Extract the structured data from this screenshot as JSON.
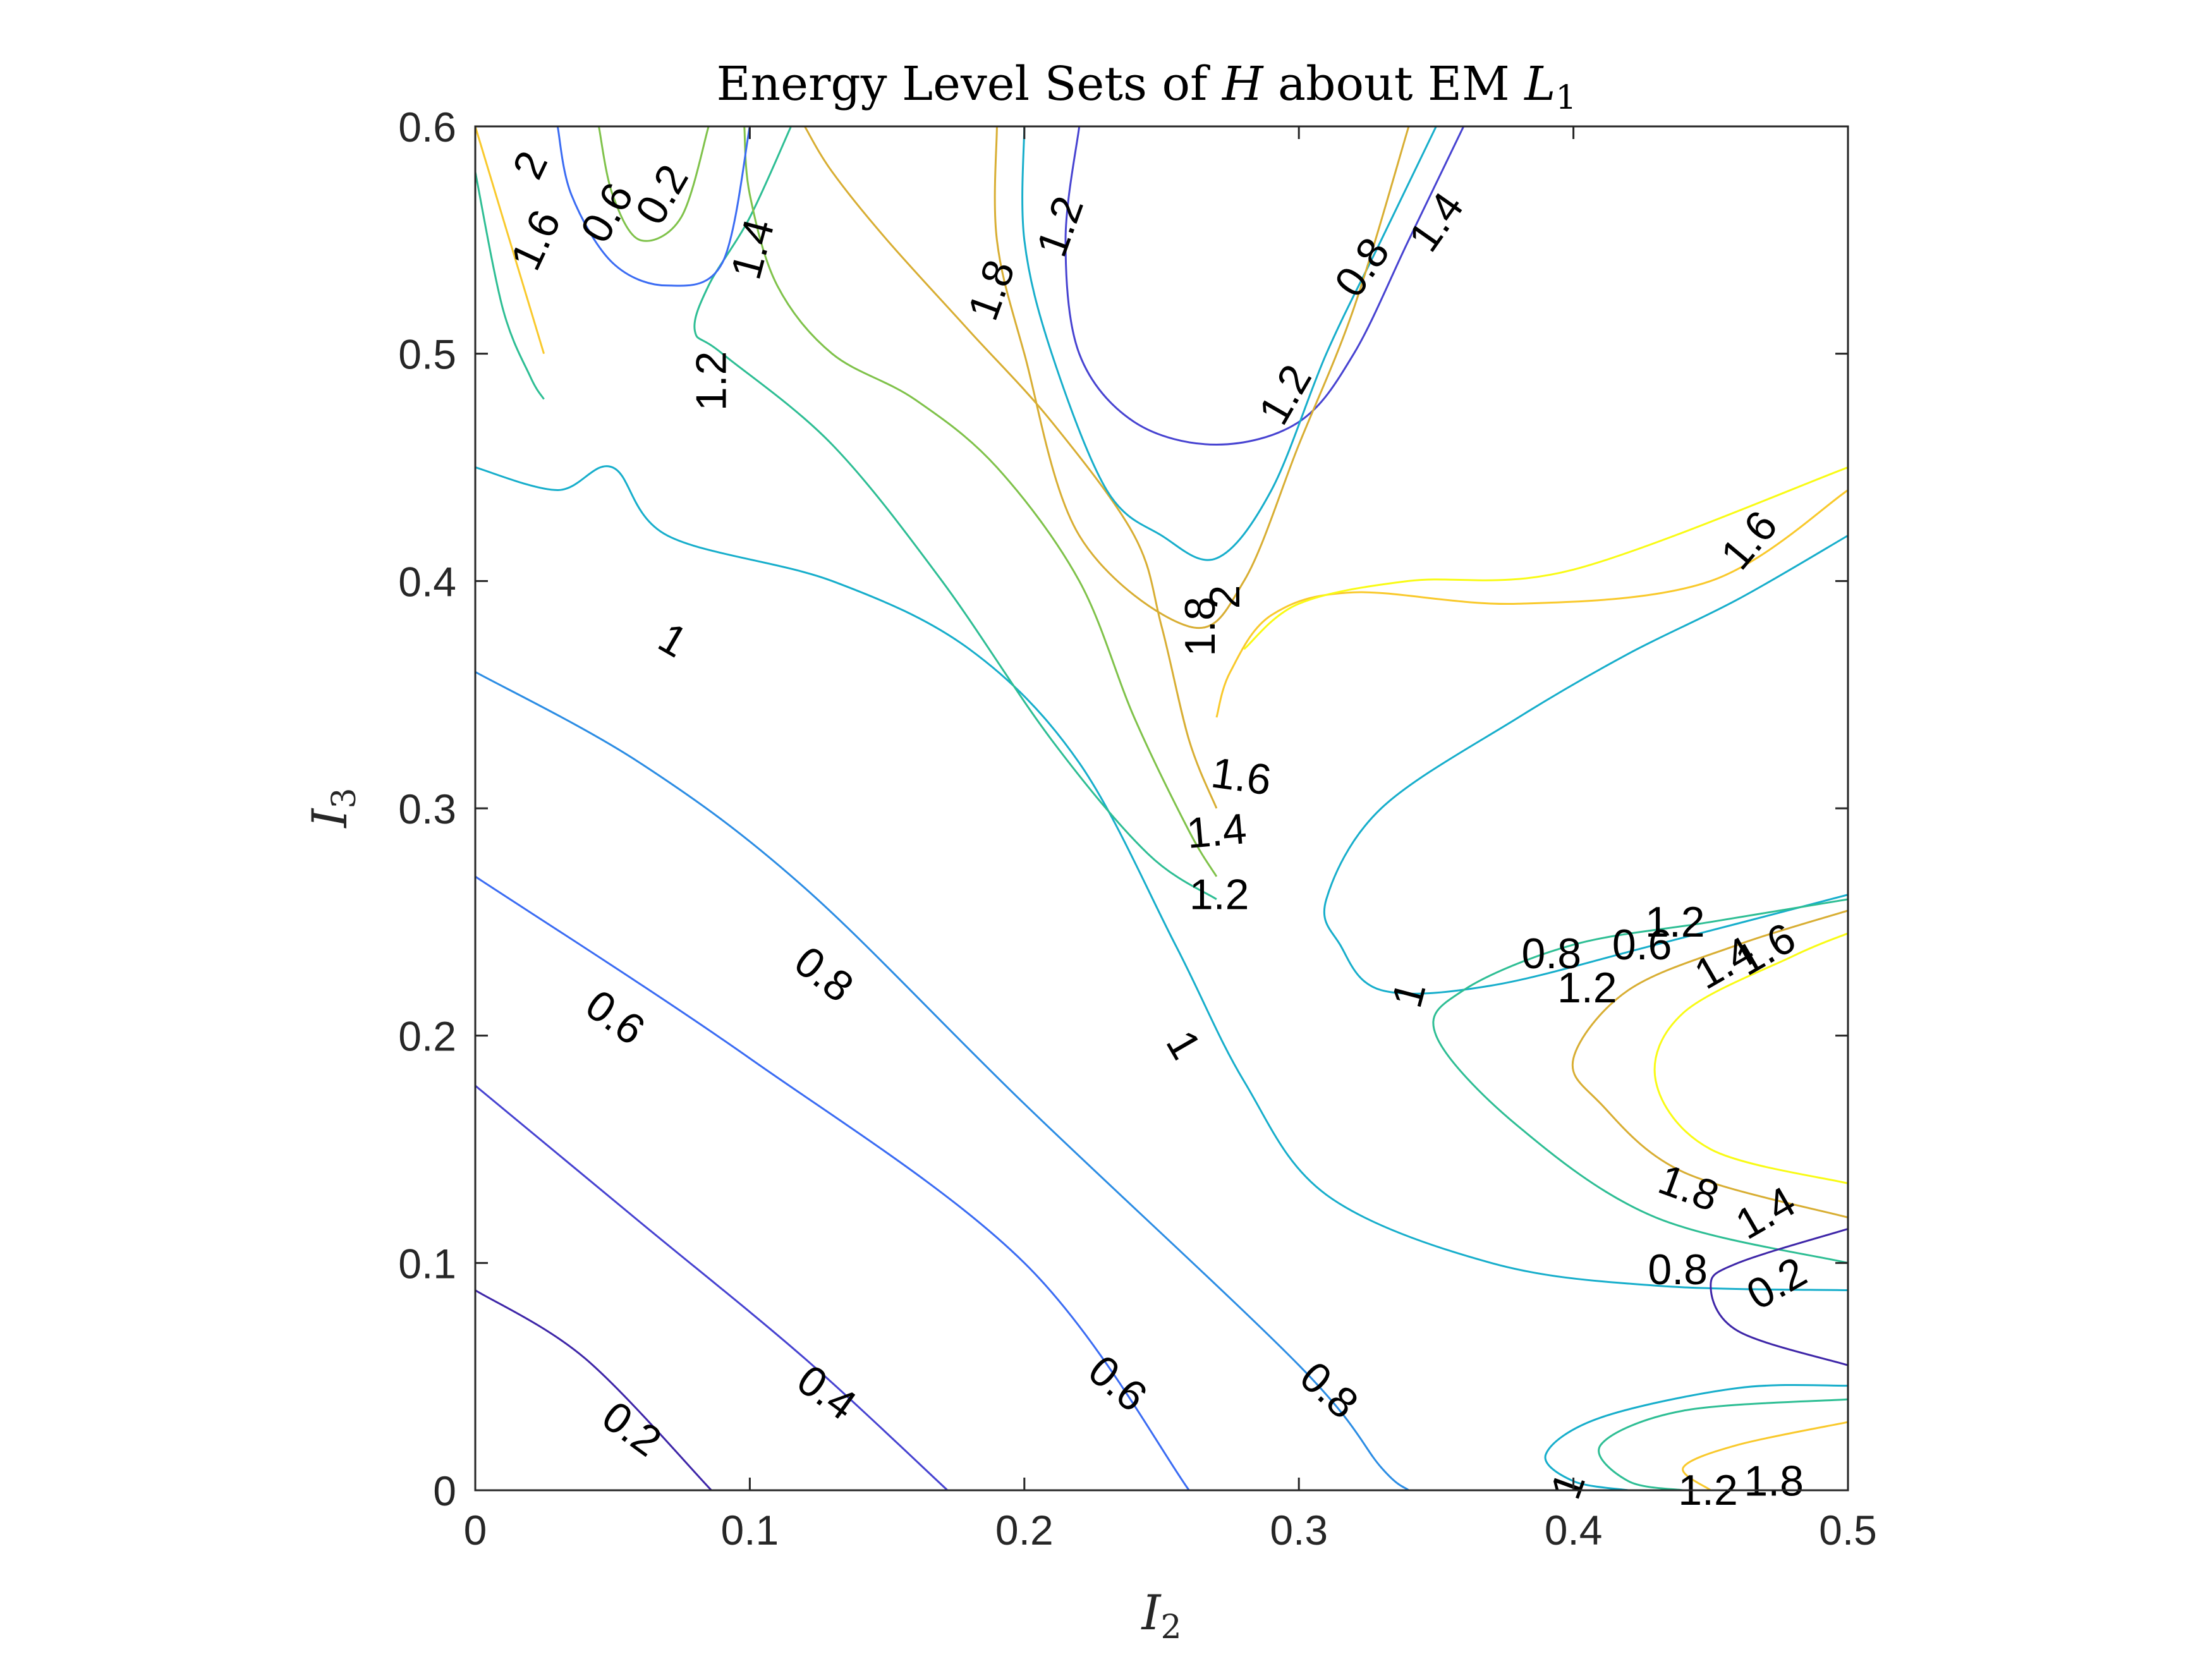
{
  "chart_data": {
    "type": "contour",
    "title_parts": [
      "Energy Level Sets of ",
      "H",
      " about EM ",
      "L",
      "1"
    ],
    "xlabel_parts": [
      "I",
      "2"
    ],
    "ylabel_parts": [
      "I",
      "3"
    ],
    "xlim": [
      0,
      0.5
    ],
    "ylim": [
      0,
      0.6
    ],
    "xticks": [
      0,
      0.1,
      0.2,
      0.3,
      0.4,
      0.5
    ],
    "xtick_labels": [
      "0",
      "0.1",
      "0.2",
      "0.3",
      "0.4",
      "0.5"
    ],
    "yticks": [
      0,
      0.1,
      0.2,
      0.3,
      0.4,
      0.5,
      0.6
    ],
    "ytick_labels": [
      "0",
      "0.1",
      "0.2",
      "0.3",
      "0.4",
      "0.5",
      "0.6"
    ],
    "grid": false,
    "colormap": "parula",
    "level_colors": {
      "0.2": "#3e26a8",
      "0.4": "#4743d1",
      "0.6": "#3b6cf3",
      "0.8": "#2c8de4",
      "1": "#17aecb",
      "1.2": "#2ebe94",
      "1.4": "#7fc24a",
      "1.6": "#d8ae33",
      "1.8": "#f9c92c",
      "2": "#f9fb15"
    },
    "level_curves": [
      {
        "level": 0.2,
        "points": [
          [
            0,
            0.088
          ],
          [
            0.04,
            0.058
          ],
          [
            0.086,
            0
          ]
        ]
      },
      {
        "level": 0.4,
        "points": [
          [
            0,
            0.178
          ],
          [
            0.06,
            0.118
          ],
          [
            0.12,
            0.058
          ],
          [
            0.172,
            0
          ]
        ]
      },
      {
        "level": 0.6,
        "points": [
          [
            0,
            0.27
          ],
          [
            0.1,
            0.19
          ],
          [
            0.2,
            0.1
          ],
          [
            0.26,
            0
          ]
        ]
      },
      {
        "level": 0.8,
        "points": [
          [
            0,
            0.36
          ],
          [
            0.06,
            0.32
          ],
          [
            0.12,
            0.265
          ],
          [
            0.2,
            0.17
          ],
          [
            0.3,
            0.055
          ],
          [
            0.33,
            0.01
          ],
          [
            0.34,
            0
          ]
        ]
      },
      {
        "level": 1,
        "points": [
          [
            0,
            0.45
          ],
          [
            0.03,
            0.44
          ],
          [
            0.05,
            0.45
          ],
          [
            0.07,
            0.42
          ],
          [
            0.13,
            0.4
          ],
          [
            0.18,
            0.37
          ],
          [
            0.22,
            0.32
          ],
          [
            0.255,
            0.24
          ],
          [
            0.28,
            0.18
          ],
          [
            0.31,
            0.13
          ],
          [
            0.37,
            0.1
          ],
          [
            0.43,
            0.09
          ],
          [
            0.5,
            0.088
          ]
        ]
      },
      {
        "level": 1,
        "points": [
          [
            0.5,
            0.046
          ],
          [
            0.46,
            0.045
          ],
          [
            0.41,
            0.032
          ],
          [
            0.39,
            0.016
          ],
          [
            0.4,
            0.004
          ],
          [
            0.42,
            0
          ]
        ]
      },
      {
        "level": 1,
        "points": [
          [
            0.5,
            0.262
          ],
          [
            0.43,
            0.24
          ],
          [
            0.37,
            0.222
          ],
          [
            0.33,
            0.22
          ],
          [
            0.315,
            0.24
          ],
          [
            0.31,
            0.26
          ],
          [
            0.33,
            0.3
          ],
          [
            0.38,
            0.34
          ],
          [
            0.42,
            0.368
          ],
          [
            0.46,
            0.392
          ],
          [
            0.5,
            0.42
          ]
        ]
      },
      {
        "level": 1.2,
        "points": [
          [
            0.27,
            0.26
          ],
          [
            0.245,
            0.28
          ],
          [
            0.21,
            0.33
          ],
          [
            0.17,
            0.4
          ],
          [
            0.13,
            0.46
          ],
          [
            0.09,
            0.5
          ],
          [
            0.08,
            0.51
          ],
          [
            0.085,
            0.53
          ],
          [
            0.1,
            0.56
          ],
          [
            0.115,
            0.6
          ]
        ]
      },
      {
        "level": 1.4,
        "points": [
          [
            0.27,
            0.27
          ],
          [
            0.26,
            0.29
          ],
          [
            0.24,
            0.34
          ],
          [
            0.22,
            0.4
          ],
          [
            0.19,
            0.45
          ],
          [
            0.16,
            0.48
          ],
          [
            0.13,
            0.5
          ],
          [
            0.11,
            0.53
          ],
          [
            0.1,
            0.57
          ],
          [
            0.098,
            0.6
          ]
        ]
      },
      {
        "level": 1.6,
        "points": [
          [
            0.27,
            0.3
          ],
          [
            0.26,
            0.33
          ],
          [
            0.25,
            0.38
          ],
          [
            0.24,
            0.42
          ],
          [
            0.21,
            0.47
          ],
          [
            0.18,
            0.51
          ],
          [
            0.15,
            0.55
          ],
          [
            0.13,
            0.58
          ],
          [
            0.12,
            0.6
          ]
        ]
      },
      {
        "level": 1.8,
        "points": [
          [
            0.27,
            0.34
          ],
          [
            0.275,
            0.36
          ],
          [
            0.29,
            0.385
          ],
          [
            0.32,
            0.395
          ],
          [
            0.38,
            0.39
          ],
          [
            0.45,
            0.4
          ],
          [
            0.5,
            0.44
          ]
        ]
      },
      {
        "level": 2,
        "points": [
          [
            0.28,
            0.37
          ],
          [
            0.3,
            0.39
          ],
          [
            0.34,
            0.4
          ],
          [
            0.4,
            0.405
          ],
          [
            0.5,
            0.45
          ]
        ]
      },
      {
        "level": 1.2,
        "points": [
          [
            0.5,
            0.1
          ],
          [
            0.43,
            0.12
          ],
          [
            0.38,
            0.16
          ],
          [
            0.35,
            0.2
          ],
          [
            0.36,
            0.22
          ],
          [
            0.4,
            0.24
          ],
          [
            0.45,
            0.25
          ],
          [
            0.5,
            0.26
          ]
        ]
      },
      {
        "level": 1.6,
        "points": [
          [
            0.5,
            0.12
          ],
          [
            0.44,
            0.14
          ],
          [
            0.41,
            0.17
          ],
          [
            0.4,
            0.19
          ],
          [
            0.42,
            0.22
          ],
          [
            0.46,
            0.24
          ],
          [
            0.5,
            0.255
          ]
        ]
      },
      {
        "level": 2,
        "points": [
          [
            0.5,
            0.135
          ],
          [
            0.45,
            0.15
          ],
          [
            0.43,
            0.18
          ],
          [
            0.44,
            0.21
          ],
          [
            0.48,
            0.235
          ],
          [
            0.5,
            0.245
          ]
        ]
      },
      {
        "level": 0.2,
        "points": [
          [
            0.5,
            0.055
          ],
          [
            0.46,
            0.07
          ],
          [
            0.45,
            0.09
          ],
          [
            0.46,
            0.1
          ],
          [
            0.5,
            0.115
          ]
        ]
      },
      {
        "level": 1.8,
        "points": [
          [
            0.5,
            0.03
          ],
          [
            0.46,
            0.02
          ],
          [
            0.44,
            0.01
          ],
          [
            0.45,
            0
          ]
        ]
      },
      {
        "level": 1.2,
        "points": [
          [
            0.5,
            0.04
          ],
          [
            0.44,
            0.035
          ],
          [
            0.41,
            0.02
          ],
          [
            0.42,
            0.004
          ],
          [
            0.44,
            0
          ]
        ]
      },
      {
        "level": 0.4,
        "points": [
          [
            0.22,
            0.6
          ],
          [
            0.215,
            0.55
          ],
          [
            0.22,
            0.5
          ],
          [
            0.24,
            0.47
          ],
          [
            0.27,
            0.46
          ],
          [
            0.3,
            0.47
          ],
          [
            0.32,
            0.5
          ],
          [
            0.34,
            0.55
          ],
          [
            0.36,
            0.6
          ]
        ]
      },
      {
        "level": 1,
        "points": [
          [
            0.2,
            0.6
          ],
          [
            0.2,
            0.55
          ],
          [
            0.21,
            0.5
          ],
          [
            0.23,
            0.44
          ],
          [
            0.25,
            0.42
          ],
          [
            0.27,
            0.41
          ],
          [
            0.29,
            0.44
          ],
          [
            0.31,
            0.5
          ],
          [
            0.33,
            0.55
          ],
          [
            0.35,
            0.6
          ]
        ]
      },
      {
        "level": 1.6,
        "points": [
          [
            0.19,
            0.6
          ],
          [
            0.19,
            0.55
          ],
          [
            0.2,
            0.5
          ],
          [
            0.22,
            0.42
          ],
          [
            0.26,
            0.38
          ],
          [
            0.28,
            0.4
          ],
          [
            0.3,
            0.46
          ],
          [
            0.32,
            0.52
          ],
          [
            0.34,
            0.6
          ]
        ]
      },
      {
        "level": 1.8,
        "points": [
          [
            0,
            0.6
          ],
          [
            0.01,
            0.56
          ],
          [
            0.02,
            0.52
          ],
          [
            0.025,
            0.5
          ]
        ]
      },
      {
        "level": 1.2,
        "points": [
          [
            0,
            0.58
          ],
          [
            0.01,
            0.52
          ],
          [
            0.02,
            0.49
          ],
          [
            0.025,
            0.48
          ]
        ]
      },
      {
        "level": 0.6,
        "points": [
          [
            0.03,
            0.6
          ],
          [
            0.035,
            0.57
          ],
          [
            0.05,
            0.54
          ],
          [
            0.07,
            0.53
          ],
          [
            0.09,
            0.54
          ],
          [
            0.1,
            0.6
          ]
        ]
      },
      {
        "level": 1.4,
        "points": [
          [
            0.045,
            0.6
          ],
          [
            0.05,
            0.57
          ],
          [
            0.06,
            0.55
          ],
          [
            0.075,
            0.56
          ],
          [
            0.085,
            0.6
          ]
        ]
      }
    ],
    "inline_labels": [
      {
        "text": "0.2",
        "x": 0.057,
        "y": 0.027,
        "angle": 36
      },
      {
        "text": "0.4",
        "x": 0.128,
        "y": 0.043,
        "angle": 36
      },
      {
        "text": "0.6",
        "x": 0.051,
        "y": 0.208,
        "angle": 36
      },
      {
        "text": "0.6",
        "x": 0.234,
        "y": 0.047,
        "angle": 40
      },
      {
        "text": "0.8",
        "x": 0.127,
        "y": 0.227,
        "angle": 38
      },
      {
        "text": "0.8",
        "x": 0.311,
        "y": 0.044,
        "angle": 42
      },
      {
        "text": "1",
        "x": 0.072,
        "y": 0.374,
        "angle": 30
      },
      {
        "text": "1",
        "x": 0.258,
        "y": 0.196,
        "angle": 60
      },
      {
        "text": "1",
        "x": 0.34,
        "y": 0.218,
        "angle": -75
      },
      {
        "text": "1",
        "x": 0.398,
        "y": 0.002,
        "angle": -70
      },
      {
        "text": "1.2",
        "x": 0.086,
        "y": 0.488,
        "angle": -90
      },
      {
        "text": "1.2",
        "x": 0.271,
        "y": 0.262,
        "angle": 0
      },
      {
        "text": "1.4",
        "x": 0.101,
        "y": 0.546,
        "angle": -75
      },
      {
        "text": "1.4",
        "x": 0.27,
        "y": 0.29,
        "angle": -5
      },
      {
        "text": "1.6",
        "x": 0.279,
        "y": 0.314,
        "angle": 8
      },
      {
        "text": "1.8",
        "x": 0.264,
        "y": 0.38,
        "angle": -90
      },
      {
        "text": "2",
        "x": 0.273,
        "y": 0.393,
        "angle": -90
      },
      {
        "text": "1.2",
        "x": 0.295,
        "y": 0.482,
        "angle": -60
      },
      {
        "text": "0.8",
        "x": 0.392,
        "y": 0.236,
        "angle": 0
      },
      {
        "text": "1.2",
        "x": 0.405,
        "y": 0.221,
        "angle": 0
      },
      {
        "text": "0.6",
        "x": 0.425,
        "y": 0.24,
        "angle": 0
      },
      {
        "text": "1.2",
        "x": 0.437,
        "y": 0.25,
        "angle": 0
      },
      {
        "text": "1.4",
        "x": 0.455,
        "y": 0.232,
        "angle": -30
      },
      {
        "text": "1.6",
        "x": 0.47,
        "y": 0.238,
        "angle": -30
      },
      {
        "text": "1.8",
        "x": 0.442,
        "y": 0.133,
        "angle": 20
      },
      {
        "text": "1.4",
        "x": 0.47,
        "y": 0.122,
        "angle": -30
      },
      {
        "text": "0.8",
        "x": 0.438,
        "y": 0.097,
        "angle": 0
      },
      {
        "text": "0.2",
        "x": 0.474,
        "y": 0.091,
        "angle": -30
      },
      {
        "text": "1.2",
        "x": 0.449,
        "y": 0.0,
        "angle": 0
      },
      {
        "text": "1.8",
        "x": 0.473,
        "y": 0.004,
        "angle": 0
      },
      {
        "text": "0.8",
        "x": 0.323,
        "y": 0.538,
        "angle": -55
      },
      {
        "text": "1.4",
        "x": 0.35,
        "y": 0.558,
        "angle": -55
      },
      {
        "text": "1.6",
        "x": 0.464,
        "y": 0.418,
        "angle": -50
      },
      {
        "text": "1.8",
        "x": 0.188,
        "y": 0.528,
        "angle": -70
      },
      {
        "text": "1.2",
        "x": 0.213,
        "y": 0.556,
        "angle": -70
      },
      {
        "text": "2",
        "x": 0.02,
        "y": 0.583,
        "angle": -65
      },
      {
        "text": "1.6",
        "x": 0.022,
        "y": 0.55,
        "angle": -65
      },
      {
        "text": "0.6",
        "x": 0.048,
        "y": 0.562,
        "angle": -60
      },
      {
        "text": "0.2",
        "x": 0.068,
        "y": 0.57,
        "angle": -60
      }
    ]
  }
}
